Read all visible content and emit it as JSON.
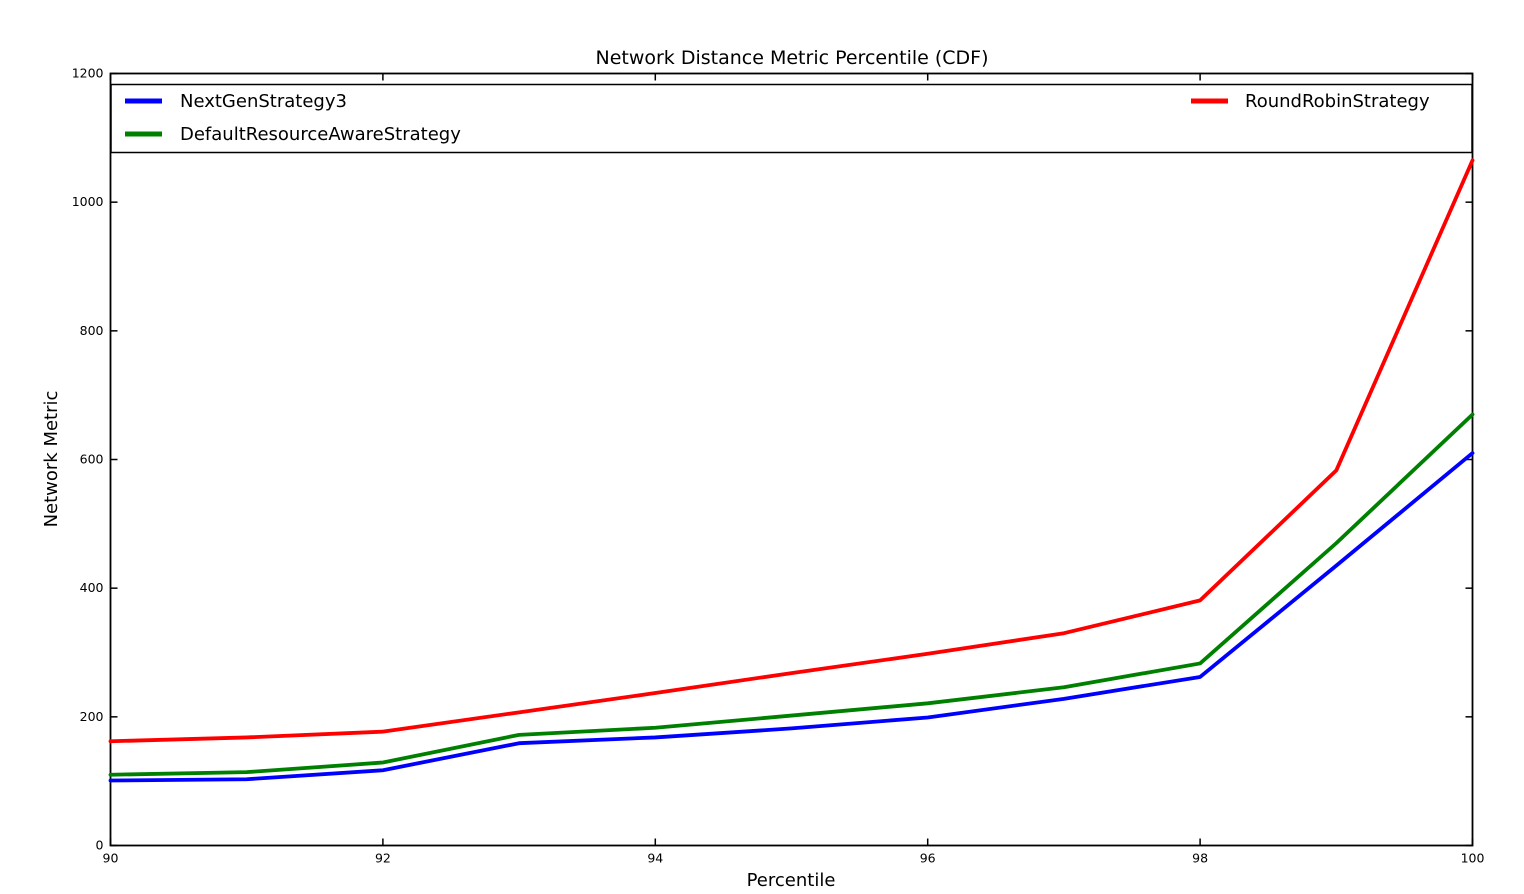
{
  "chart_data": {
    "type": "line",
    "title": "Network Distance Metric Percentile (CDF)",
    "xlabel": "Percentile",
    "ylabel": "Network Metric",
    "xlim": [
      90,
      100
    ],
    "ylim": [
      0,
      1200
    ],
    "xticks": [
      90,
      92,
      94,
      96,
      98,
      100
    ],
    "yticks": [
      0,
      200,
      400,
      600,
      800,
      1000,
      1200
    ],
    "grid": false,
    "legend_position": "top-inside-expanded-2col",
    "x": [
      90,
      91,
      92,
      93,
      94,
      95,
      96,
      97,
      98,
      99,
      100
    ],
    "series": [
      {
        "name": "NextGenStrategy3",
        "color": "#0000ff",
        "values": [
          101,
          103,
          117,
          159,
          168,
          182,
          199,
          228,
          262,
          435,
          610
        ]
      },
      {
        "name": "DefaultResourceAwareStrategy",
        "color": "#008000",
        "values": [
          110,
          114,
          129,
          172,
          183,
          202,
          221,
          246,
          283,
          470,
          670
        ]
      },
      {
        "name": "RoundRobinStrategy",
        "color": "#ff0000",
        "values": [
          162,
          168,
          177,
          207,
          237,
          268,
          298,
          330,
          381,
          583,
          1065
        ]
      }
    ]
  },
  "colors": {
    "background": "#ffffff",
    "frame": "#000000",
    "text": "#000000"
  }
}
